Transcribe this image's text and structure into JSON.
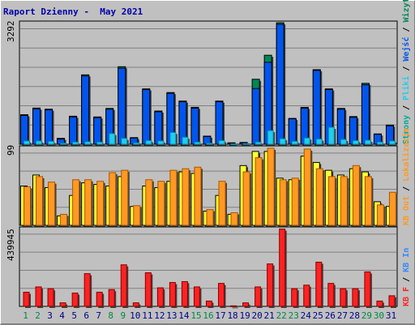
{
  "title": "Raport Dzienny -  May 2021",
  "colors": {
    "background": "#c0c0c0",
    "title": "#0000aa",
    "visits_blue": "#0055ee",
    "visits_green": "#008855",
    "files_cyan": "#22ccee",
    "files_edge": "#0088aa",
    "locations_yellow": "#ffff33",
    "kb_out_orange": "#ff9922",
    "kb_in_red": "#ff2222",
    "weekend_label": "#008844",
    "weekday_label": "#000088"
  },
  "chart_data": [
    {
      "type": "bar",
      "name": "top",
      "y_tick_label": "3292",
      "right_legend": [
        {
          "text": "Wizyt",
          "color": "#008855"
        },
        {
          "text": "Wejść",
          "color": "#0055ee"
        },
        {
          "text": "Pliki",
          "color": "#22ccee"
        },
        {
          "text": "Strony",
          "color": "#00aa99"
        }
      ],
      "categories": [
        "1",
        "2",
        "3",
        "4",
        "5",
        "6",
        "7",
        "8",
        "9",
        "10",
        "11",
        "12",
        "13",
        "14",
        "15",
        "16",
        "17",
        "18",
        "19",
        "20",
        "21",
        "22",
        "23",
        "24",
        "25",
        "26",
        "27",
        "28",
        "29",
        "30",
        "31"
      ],
      "weekend_days": [
        "1",
        "2",
        "8",
        "9",
        "15",
        "16",
        "22",
        "23",
        "29",
        "30"
      ],
      "ylim": [
        0,
        3292
      ],
      "series": [
        {
          "name": "Wizyt",
          "values": [
            800,
            980,
            950,
            160,
            760,
            1880,
            740,
            970,
            2100,
            180,
            1500,
            900,
            1400,
            1170,
            1000,
            220,
            1170,
            40,
            50,
            1760,
            2410,
            3290,
            700,
            1000,
            2020,
            1500,
            970,
            750,
            1650,
            280,
            520
          ]
        },
        {
          "name": "Wejść",
          "values": [
            780,
            960,
            930,
            140,
            740,
            1850,
            720,
            950,
            2060,
            170,
            1480,
            880,
            1380,
            1150,
            980,
            210,
            1150,
            30,
            40,
            1510,
            2220,
            3250,
            690,
            980,
            2000,
            1480,
            950,
            730,
            1610,
            270,
            500
          ]
        },
        {
          "name": "Pliki",
          "values": [
            90,
            90,
            80,
            30,
            60,
            70,
            60,
            290,
            160,
            40,
            100,
            90,
            320,
            190,
            60,
            30,
            100,
            10,
            20,
            60,
            370,
            150,
            80,
            170,
            140,
            460,
            130,
            100,
            110,
            60,
            90
          ]
        }
      ]
    },
    {
      "type": "bar",
      "name": "middle",
      "y_tick_label": "99",
      "right_legend": [
        {
          "text": "Lokalizacje",
          "color": "#ff9922"
        },
        {
          "text": "KB Out",
          "color": "#ff9922"
        }
      ],
      "categories": [
        "1",
        "2",
        "3",
        "4",
        "5",
        "6",
        "7",
        "8",
        "9",
        "10",
        "11",
        "12",
        "13",
        "14",
        "15",
        "16",
        "17",
        "18",
        "19",
        "20",
        "21",
        "22",
        "23",
        "24",
        "25",
        "26",
        "27",
        "28",
        "29",
        "30",
        "31"
      ],
      "ylim": [
        0,
        99
      ],
      "series": [
        {
          "name": "Lokalizacje",
          "values": [
            50,
            64,
            48,
            12,
            38,
            54,
            52,
            50,
            62,
            24,
            50,
            48,
            56,
            68,
            66,
            18,
            38,
            14,
            76,
            94,
            94,
            60,
            58,
            88,
            80,
            70,
            64,
            72,
            68,
            30,
            24
          ]
        },
        {
          "name": "KB Out",
          "values": [
            49,
            62,
            55,
            14,
            58,
            58,
            56,
            67,
            70,
            25,
            58,
            56,
            70,
            72,
            74,
            20,
            56,
            16,
            68,
            86,
            98,
            58,
            60,
            97,
            72,
            62,
            62,
            76,
            62,
            26,
            42
          ]
        }
      ]
    },
    {
      "type": "bar",
      "name": "bottom",
      "y_tick_label": "439945",
      "right_legend": [
        {
          "text": "KB In",
          "color": "#3388ff"
        },
        {
          "text": "KB F",
          "color": "#ff2222"
        }
      ],
      "categories": [
        "1",
        "2",
        "3",
        "4",
        "5",
        "6",
        "7",
        "8",
        "9",
        "10",
        "11",
        "12",
        "13",
        "14",
        "15",
        "16",
        "17",
        "18",
        "19",
        "20",
        "21",
        "22",
        "23",
        "24",
        "25",
        "26",
        "27",
        "28",
        "29",
        "30",
        "31"
      ],
      "ylim": [
        0,
        439945
      ],
      "series": [
        {
          "name": "KB F",
          "values": [
            80000,
            110000,
            100000,
            20000,
            75000,
            185000,
            80000,
            95000,
            235000,
            20000,
            190000,
            105000,
            135000,
            140000,
            110000,
            30000,
            130000,
            3000,
            20000,
            110000,
            240000,
            437000,
            100000,
            120000,
            250000,
            130000,
            100000,
            100000,
            195000,
            30000,
            60000
          ]
        }
      ]
    }
  ]
}
